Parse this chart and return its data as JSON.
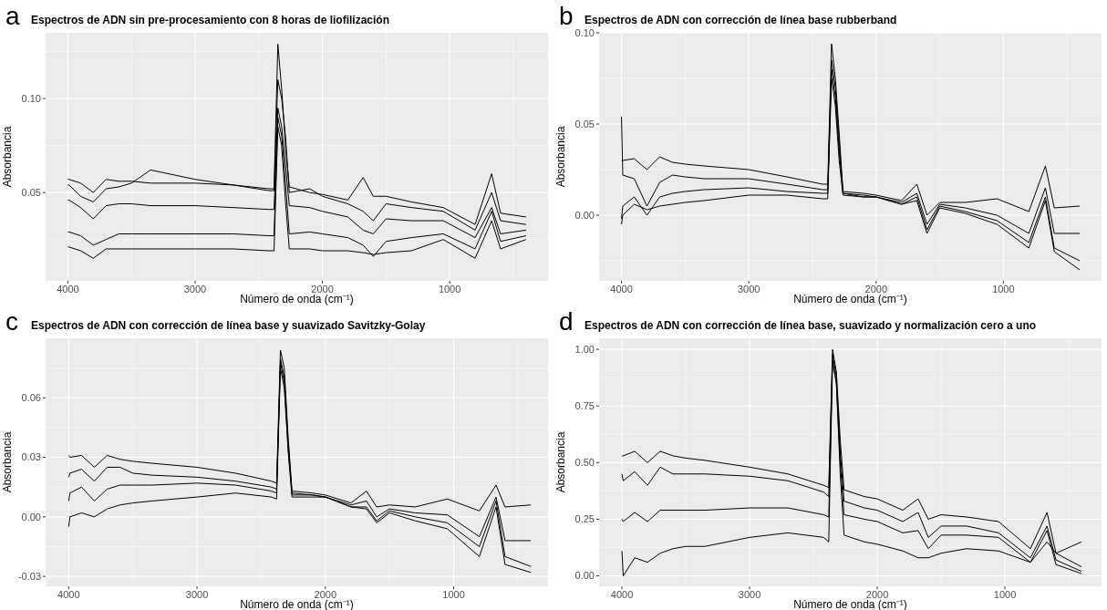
{
  "chart_data": [
    {
      "type": "line",
      "title": "Espectros de ADN sin pre-procesamiento con 8 horas de liofilización",
      "annotations": [
        "a"
      ],
      "xlabel": "Número de onda (cm⁻¹)",
      "ylabel": "Absorbancia",
      "xlim": [
        4175,
        227
      ],
      "xticks": [
        4000,
        3000,
        2000,
        1000
      ],
      "ylim": [
        0.003,
        0.135
      ],
      "yticks": [
        {
          "value": 0.05,
          "label": "0.05"
        },
        {
          "value": 0.1,
          "label": "0.10"
        }
      ],
      "grid": true,
      "x": [
        4000,
        3990,
        3900,
        3800,
        3700,
        3600,
        3500,
        3350,
        3000,
        2700,
        2420,
        2380,
        2350,
        2320,
        2290,
        2260,
        2100,
        2000,
        1800,
        1680,
        1600,
        1500,
        1300,
        1050,
        800,
        670,
        600,
        400
      ],
      "series": [
        {
          "color": "#000000",
          "values": [
            0.057,
            0.057,
            0.055,
            0.05,
            0.057,
            0.056,
            0.056,
            0.055,
            0.055,
            0.054,
            0.052,
            0.052,
            0.129,
            0.105,
            0.075,
            0.053,
            0.05,
            0.049,
            0.046,
            0.058,
            0.048,
            0.048,
            0.045,
            0.042,
            0.033,
            0.06,
            0.039,
            0.037
          ]
        },
        {
          "color": "#000000",
          "values": [
            0.054,
            0.054,
            0.048,
            0.045,
            0.052,
            0.053,
            0.055,
            0.062,
            0.057,
            0.054,
            0.051,
            0.051,
            0.11,
            0.1,
            0.08,
            0.05,
            0.052,
            0.048,
            0.044,
            0.04,
            0.035,
            0.044,
            0.042,
            0.04,
            0.03,
            0.05,
            0.035,
            0.033
          ]
        },
        {
          "color": "#000000",
          "values": [
            0.046,
            0.046,
            0.042,
            0.036,
            0.043,
            0.044,
            0.044,
            0.043,
            0.043,
            0.042,
            0.041,
            0.041,
            0.095,
            0.085,
            0.065,
            0.043,
            0.042,
            0.04,
            0.037,
            0.03,
            0.028,
            0.036,
            0.035,
            0.035,
            0.026,
            0.042,
            0.028,
            0.03
          ]
        },
        {
          "color": "#000000",
          "values": [
            0.029,
            0.029,
            0.027,
            0.022,
            0.025,
            0.028,
            0.028,
            0.028,
            0.028,
            0.028,
            0.027,
            0.027,
            0.09,
            0.08,
            0.055,
            0.028,
            0.029,
            0.028,
            0.026,
            0.022,
            0.016,
            0.024,
            0.026,
            0.028,
            0.02,
            0.04,
            0.024,
            0.027
          ]
        },
        {
          "color": "#000000",
          "values": [
            0.021,
            0.021,
            0.019,
            0.015,
            0.02,
            0.02,
            0.02,
            0.02,
            0.02,
            0.02,
            0.019,
            0.019,
            0.085,
            0.075,
            0.045,
            0.02,
            0.02,
            0.019,
            0.019,
            0.018,
            0.017,
            0.018,
            0.019,
            0.025,
            0.015,
            0.035,
            0.02,
            0.025
          ]
        }
      ]
    },
    {
      "type": "line",
      "title": "Espectros de ADN con corrección de línea base rubberband",
      "annotations": [
        "b"
      ],
      "xlabel": "Número de onda (cm⁻¹)",
      "ylabel": "Absorbancia",
      "xlim": [
        4176,
        229
      ],
      "xticks": [
        4000,
        3000,
        2000,
        1000
      ],
      "ylim": [
        -0.036,
        0.1
      ],
      "yticks": [
        {
          "value": 0,
          "label": "0.00"
        },
        {
          "value": 0.05,
          "label": "0.05"
        },
        {
          "value": 0.1,
          "label": "0.10"
        }
      ],
      "grid": true,
      "x": [
        4000,
        3990,
        3900,
        3800,
        3700,
        3600,
        3500,
        3350,
        3000,
        2700,
        2420,
        2380,
        2350,
        2320,
        2290,
        2260,
        2100,
        2000,
        1800,
        1680,
        1600,
        1500,
        1300,
        1050,
        800,
        670,
        600,
        400
      ],
      "series": [
        {
          "color": "#000000",
          "values": [
            0.03,
            0.03,
            0.031,
            0.025,
            0.032,
            0.029,
            0.028,
            0.027,
            0.025,
            0.021,
            0.017,
            0.017,
            0.094,
            0.075,
            0.045,
            0.013,
            0.012,
            0.011,
            0.008,
            0.017,
            0.0,
            0.007,
            0.007,
            0.009,
            0.002,
            0.027,
            0.004,
            0.005
          ]
        },
        {
          "color": "#000000",
          "values": [
            0.054,
            0.022,
            0.02,
            0.005,
            0.018,
            0.022,
            0.021,
            0.02,
            0.02,
            0.017,
            0.014,
            0.014,
            0.085,
            0.07,
            0.04,
            0.012,
            0.011,
            0.01,
            0.007,
            0.012,
            -0.005,
            0.006,
            0.004,
            0.0,
            -0.01,
            0.015,
            -0.01,
            -0.01
          ]
        },
        {
          "color": "#000000",
          "values": [
            -0.002,
            0.005,
            0.01,
            0.0,
            0.01,
            0.012,
            0.013,
            0.014,
            0.015,
            0.013,
            0.012,
            0.012,
            0.08,
            0.065,
            0.035,
            0.012,
            0.01,
            0.01,
            0.006,
            0.01,
            -0.008,
            0.005,
            0.002,
            -0.003,
            -0.015,
            0.01,
            -0.018,
            -0.025
          ]
        },
        {
          "color": "#000000",
          "values": [
            -0.005,
            0.0,
            0.006,
            0.003,
            0.005,
            0.006,
            0.007,
            0.008,
            0.011,
            0.011,
            0.009,
            0.009,
            0.075,
            0.06,
            0.03,
            0.011,
            0.01,
            0.01,
            0.006,
            0.008,
            -0.01,
            0.004,
            0.001,
            -0.005,
            -0.018,
            0.008,
            -0.02,
            -0.03
          ]
        }
      ]
    },
    {
      "type": "line",
      "title": "Espectros de ADN con corrección de línea base y suavizado Savitzky-Golay",
      "annotations": [
        "c"
      ],
      "xlabel": "Número de onda (cm⁻¹)",
      "ylabel": "Absorbancia",
      "xlim": [
        4180,
        265
      ],
      "xticks": [
        4000,
        3000,
        2000,
        1000
      ],
      "ylim": [
        -0.035,
        0.09
      ],
      "yticks": [
        -0.03,
        {
          "value": 0,
          "label": "0.00"
        },
        0.03,
        0.06
      ],
      "grid": true,
      "x": [
        4000,
        3990,
        3900,
        3800,
        3700,
        3600,
        3500,
        3350,
        3000,
        2700,
        2420,
        2380,
        2350,
        2320,
        2290,
        2260,
        2100,
        2000,
        1800,
        1680,
        1600,
        1500,
        1300,
        1050,
        800,
        670,
        600,
        400
      ],
      "series": [
        {
          "color": "#000000",
          "values": [
            0.031,
            0.03,
            0.031,
            0.025,
            0.031,
            0.029,
            0.028,
            0.027,
            0.025,
            0.022,
            0.018,
            0.017,
            0.084,
            0.075,
            0.04,
            0.013,
            0.012,
            0.011,
            0.007,
            0.013,
            0.005,
            0.006,
            0.005,
            0.009,
            0.003,
            0.016,
            0.005,
            0.006
          ]
        },
        {
          "color": "#000000",
          "values": [
            0.02,
            0.022,
            0.024,
            0.018,
            0.025,
            0.025,
            0.022,
            0.021,
            0.02,
            0.018,
            0.015,
            0.014,
            0.08,
            0.07,
            0.038,
            0.012,
            0.011,
            0.01,
            0.006,
            0.008,
            0.0,
            0.004,
            0.002,
            0.001,
            -0.01,
            0.01,
            -0.012,
            -0.012
          ]
        },
        {
          "color": "#000000",
          "values": [
            0.008,
            0.012,
            0.015,
            0.008,
            0.014,
            0.016,
            0.016,
            0.016,
            0.017,
            0.016,
            0.013,
            0.012,
            0.078,
            0.068,
            0.035,
            0.011,
            0.011,
            0.01,
            0.005,
            0.005,
            -0.002,
            0.003,
            0.0,
            -0.003,
            -0.015,
            0.008,
            -0.02,
            -0.025
          ]
        },
        {
          "color": "#000000",
          "values": [
            -0.005,
            0.0,
            0.002,
            0.0,
            0.004,
            0.006,
            0.007,
            0.008,
            0.01,
            0.012,
            0.01,
            0.009,
            0.075,
            0.065,
            0.033,
            0.01,
            0.01,
            0.01,
            0.005,
            0.004,
            -0.003,
            0.002,
            -0.002,
            -0.006,
            -0.02,
            0.005,
            -0.024,
            -0.028
          ]
        }
      ]
    },
    {
      "type": "line",
      "title": "Espectros de ADN con corrección de línea base, suavizado y normalización cero a uno",
      "annotations": [
        "d"
      ],
      "xlabel": "Número de onda (cm⁻¹)",
      "ylabel": "Absorbancia",
      "xlim": [
        4179,
        243
      ],
      "xticks": [
        4000,
        3000,
        2000,
        1000
      ],
      "ylim": [
        -0.046,
        1.049
      ],
      "yticks": [
        {
          "value": 0,
          "label": "0.00"
        },
        0.25,
        {
          "value": 0.5,
          "label": "0.50"
        },
        0.75,
        {
          "value": 1,
          "label": "1.00"
        }
      ],
      "grid": true,
      "x": [
        4000,
        3990,
        3900,
        3800,
        3700,
        3600,
        3500,
        3350,
        3000,
        2700,
        2420,
        2380,
        2350,
        2320,
        2290,
        2260,
        2100,
        2000,
        1800,
        1680,
        1600,
        1500,
        1300,
        1050,
        800,
        670,
        600,
        400
      ],
      "series": [
        {
          "color": "#000000",
          "values": [
            0.53,
            0.53,
            0.55,
            0.5,
            0.55,
            0.53,
            0.52,
            0.51,
            0.48,
            0.45,
            0.4,
            0.39,
            1.0,
            0.9,
            0.6,
            0.38,
            0.35,
            0.34,
            0.29,
            0.34,
            0.25,
            0.27,
            0.26,
            0.24,
            0.12,
            0.28,
            0.1,
            0.04
          ]
        },
        {
          "color": "#000000",
          "values": [
            0.45,
            0.42,
            0.46,
            0.4,
            0.48,
            0.45,
            0.45,
            0.45,
            0.44,
            0.42,
            0.37,
            0.35,
            0.98,
            0.88,
            0.55,
            0.33,
            0.3,
            0.29,
            0.24,
            0.28,
            0.17,
            0.22,
            0.22,
            0.19,
            0.08,
            0.22,
            0.07,
            0.02
          ]
        },
        {
          "color": "#000000",
          "values": [
            0.25,
            0.24,
            0.28,
            0.24,
            0.29,
            0.29,
            0.29,
            0.29,
            0.3,
            0.3,
            0.27,
            0.26,
            0.95,
            0.85,
            0.5,
            0.27,
            0.25,
            0.24,
            0.19,
            0.2,
            0.12,
            0.18,
            0.18,
            0.17,
            0.06,
            0.2,
            0.05,
            0.01
          ]
        },
        {
          "color": "#000000",
          "values": [
            0.11,
            0.0,
            0.08,
            0.06,
            0.1,
            0.12,
            0.13,
            0.13,
            0.17,
            0.19,
            0.17,
            0.15,
            0.95,
            0.85,
            0.45,
            0.18,
            0.15,
            0.14,
            0.11,
            0.08,
            0.08,
            0.1,
            0.12,
            0.11,
            0.06,
            0.15,
            0.1,
            0.15
          ]
        }
      ]
    }
  ]
}
